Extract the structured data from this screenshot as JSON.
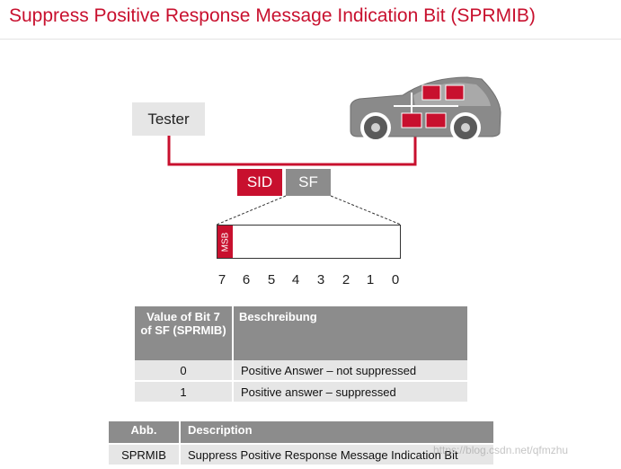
{
  "title": "Suppress Positive Response Message Indication Bit (SPRMIB)",
  "diagram": {
    "tester_label": "Tester",
    "sid_label": "SID",
    "sf_label": "SF",
    "msb_label": "MSB",
    "bit_numbers": [
      "7",
      "6",
      "5",
      "4",
      "3",
      "2",
      "1",
      "0"
    ],
    "colors": {
      "accent": "#c8102e",
      "gray": "#8c8c8c",
      "light": "#e6e6e6",
      "car": "#8a8a8a"
    }
  },
  "table1": {
    "header_col1": "Value of Bit 7 of SF (SPRMIB)",
    "header_col2": "Beschreibung",
    "rows": [
      {
        "value": "0",
        "description": "Positive Answer – not suppressed"
      },
      {
        "value": "1",
        "description": "Positive answer – suppressed"
      }
    ]
  },
  "table2": {
    "header_col1": "Abb.",
    "header_col2": "Description",
    "rows": [
      {
        "abbr": "SPRMIB",
        "description": "Suppress Positive Response Message Indication Bit"
      }
    ]
  },
  "watermark": "https://blog.csdn.net/qfmzhu"
}
